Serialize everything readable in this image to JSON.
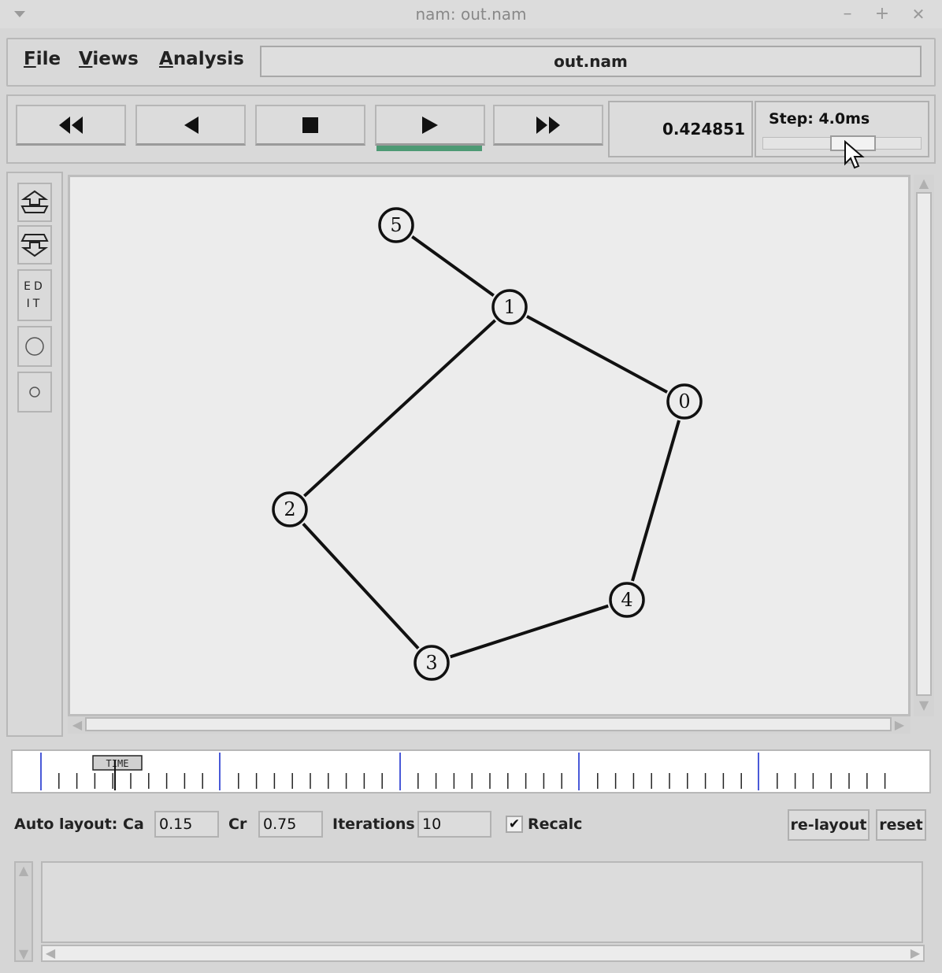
{
  "window": {
    "title": "nam: out.nam",
    "controls": [
      "–",
      "+",
      "✕"
    ]
  },
  "menu": {
    "items": [
      {
        "mnemonic": "F",
        "rest": "ile"
      },
      {
        "mnemonic": "V",
        "rest": "iews"
      },
      {
        "mnemonic": "A",
        "rest": "nalysis"
      }
    ],
    "filename": "out.nam"
  },
  "playback": {
    "buttons": [
      {
        "name": "fast-rewind",
        "glyph": "◀◀"
      },
      {
        "name": "rewind",
        "glyph": "◀"
      },
      {
        "name": "stop",
        "glyph": "■"
      },
      {
        "name": "play",
        "glyph": "▶"
      },
      {
        "name": "fast-forward",
        "glyph": "▶▶"
      }
    ],
    "active": "play",
    "time": "0.424851",
    "step_label": "Step: 4.0ms"
  },
  "tools": {
    "edit_text": "ED\nIT"
  },
  "network": {
    "nodes": [
      {
        "id": "5"
      },
      {
        "id": "1"
      },
      {
        "id": "0"
      },
      {
        "id": "2"
      },
      {
        "id": "4"
      },
      {
        "id": "3"
      }
    ],
    "links": [
      [
        "5",
        "1"
      ],
      [
        "1",
        "0"
      ],
      [
        "1",
        "2"
      ],
      [
        "0",
        "4"
      ],
      [
        "2",
        "3"
      ],
      [
        "3",
        "4"
      ]
    ]
  },
  "timeline": {
    "marker_label": "TIME"
  },
  "auto_layout": {
    "label": "Auto layout:",
    "ca_label": "Ca",
    "ca_value": "0.15",
    "cr_label": "Cr",
    "cr_value": "0.75",
    "iterations_label": "Iterations",
    "iterations_value": "10",
    "recalc_label": "Recalc",
    "recalc_checked": true,
    "relayout_label": "re-layout",
    "reset_label": "reset"
  }
}
